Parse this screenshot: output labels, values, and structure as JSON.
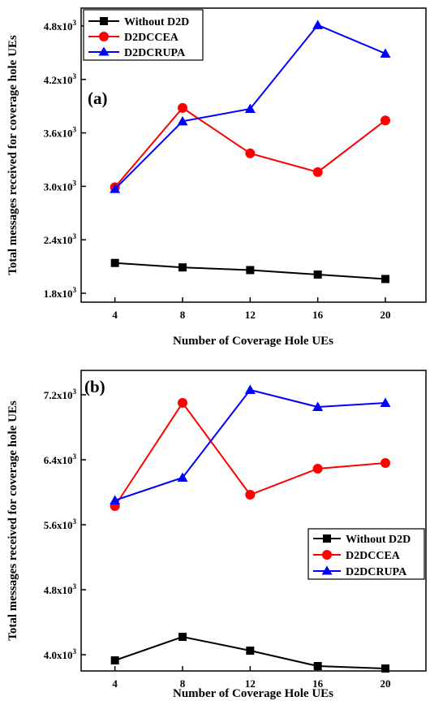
{
  "chart_data": [
    {
      "type": "line",
      "panel_label": "(a)",
      "xlabel": "Number of Coverage Hole UEs",
      "ylabel": "Total messages received for coverage hole UEs",
      "x": [
        4,
        8,
        12,
        16,
        20
      ],
      "x_ticks": [
        "4",
        "8",
        "12",
        "16",
        "20"
      ],
      "xlim": [
        2,
        22.4
      ],
      "ylim": [
        1700,
        5000
      ],
      "y_ticks": [
        1800,
        2400,
        3000,
        3600,
        4200,
        4800
      ],
      "y_tick_labels": [
        {
          "base": "1.8x10",
          "exp": "3"
        },
        {
          "base": "2.4x10",
          "exp": "3"
        },
        {
          "base": "3.0x10",
          "exp": "3"
        },
        {
          "base": "3.6x10",
          "exp": "3"
        },
        {
          "base": "4.2x10",
          "exp": "3"
        },
        {
          "base": "4.8x10",
          "exp": "3"
        }
      ],
      "legend_position": "top-left",
      "series": [
        {
          "name": "Without D2D",
          "color": "#000000",
          "marker": "square",
          "values": [
            2140,
            2090,
            2060,
            2010,
            1960
          ]
        },
        {
          "name": "D2DCCEA",
          "color": "#ff0000",
          "marker": "circle",
          "values": [
            2990,
            3880,
            3370,
            3160,
            3740
          ]
        },
        {
          "name": "D2DCRUPA",
          "color": "#0000ff",
          "marker": "triangle",
          "values": [
            2970,
            3730,
            3870,
            4810,
            4490
          ]
        }
      ]
    },
    {
      "type": "line",
      "panel_label": "(b)",
      "xlabel": "Number of Coverage Hole UEs",
      "ylabel": "Total messages received for coverage hole UEs",
      "x": [
        4,
        8,
        12,
        16,
        20
      ],
      "x_ticks": [
        "4",
        "8",
        "12",
        "16",
        "20"
      ],
      "xlim": [
        2,
        22.4
      ],
      "ylim": [
        3800,
        7500
      ],
      "y_ticks": [
        4000,
        4800,
        5600,
        6400,
        7200
      ],
      "y_tick_labels": [
        {
          "base": "4.0x10",
          "exp": "3"
        },
        {
          "base": "4.8x10",
          "exp": "3"
        },
        {
          "base": "5.6x10",
          "exp": "3"
        },
        {
          "base": "6.4x10",
          "exp": "3"
        },
        {
          "base": "7.2x10",
          "exp": "3"
        }
      ],
      "legend_position": "center-right",
      "series": [
        {
          "name": "Without D2D",
          "color": "#000000",
          "marker": "square",
          "values": [
            3930,
            4220,
            4050,
            3860,
            3830
          ]
        },
        {
          "name": "D2DCCEA",
          "color": "#ff0000",
          "marker": "circle",
          "values": [
            5830,
            7100,
            5970,
            6290,
            6360
          ]
        },
        {
          "name": "D2DCRUPA",
          "color": "#0000ff",
          "marker": "triangle",
          "values": [
            5900,
            6180,
            7260,
            7050,
            7100
          ]
        }
      ]
    }
  ]
}
